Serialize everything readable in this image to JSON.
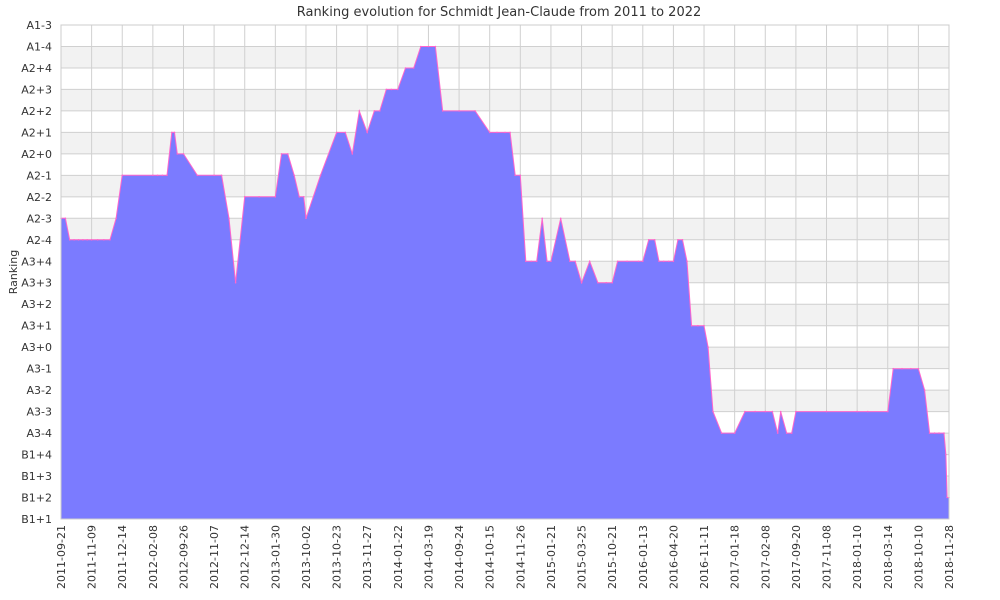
{
  "chart_data": {
    "type": "area",
    "title": "Ranking evolution for Schmidt Jean-Claude from 2011 to 2022",
    "xlabel": "",
    "ylabel": "Ranking",
    "grid": true,
    "y_categories": [
      "B1+1",
      "B1+2",
      "B1+3",
      "B1+4",
      "A3-4",
      "A3-3",
      "A3-2",
      "A3-1",
      "A3+0",
      "A3+1",
      "A3+2",
      "A3+3",
      "A3+4",
      "A2-4",
      "A2-3",
      "A2-2",
      "A2-1",
      "A2+0",
      "A2+1",
      "A2+2",
      "A2+3",
      "A2+4",
      "A1-4",
      "A1-3"
    ],
    "x_tick_labels": [
      "2011-09-21",
      "2011-11-09",
      "2011-12-14",
      "2012-02-08",
      "2012-09-26",
      "2012-11-07",
      "2012-12-14",
      "2013-01-30",
      "2013-10-02",
      "2013-10-23",
      "2013-11-27",
      "2014-01-22",
      "2014-03-19",
      "2014-09-24",
      "2014-10-15",
      "2014-11-26",
      "2015-01-21",
      "2015-03-25",
      "2015-10-21",
      "2016-01-13",
      "2016-04-20",
      "2016-11-11",
      "2017-01-18",
      "2017-02-08",
      "2017-09-20",
      "2017-11-08",
      "2018-01-10",
      "2018-03-14",
      "2018-10-10",
      "2018-11-28"
    ],
    "series": [
      {
        "values": [
          [
            "2011-09-21",
            "A2-3"
          ],
          [
            "2011-09-28",
            "A2-3"
          ],
          [
            "2011-10-05",
            "A2-4"
          ],
          [
            "2011-10-12",
            "A2-4"
          ],
          [
            "2011-10-19",
            "A2-4"
          ],
          [
            "2011-10-26",
            "A2-4"
          ],
          [
            "2011-11-02",
            "A2-4"
          ],
          [
            "2011-11-09",
            "A2-4"
          ],
          [
            "2011-11-16",
            "A2-4"
          ],
          [
            "2011-11-23",
            "A2-4"
          ],
          [
            "2011-11-30",
            "A2-4"
          ],
          [
            "2011-12-07",
            "A2-3"
          ],
          [
            "2011-12-14",
            "A2-1"
          ],
          [
            "2012-02-08",
            "A2-1"
          ],
          [
            "2012-03-15",
            "A2-1"
          ],
          [
            "2012-04-20",
            "A2-1"
          ],
          [
            "2012-05-25",
            "A2-1"
          ],
          [
            "2012-06-30",
            "A2+1"
          ],
          [
            "2012-07-20",
            "A2+1"
          ],
          [
            "2012-08-10",
            "A2+0"
          ],
          [
            "2012-09-26",
            "A2+0"
          ],
          [
            "2012-10-15",
            "A2-1"
          ],
          [
            "2012-11-07",
            "A2-1"
          ],
          [
            "2012-11-16",
            "A2-1"
          ],
          [
            "2012-11-25",
            "A2-3"
          ],
          [
            "2012-12-03",
            "A3+3"
          ],
          [
            "2012-12-14",
            "A2-2"
          ],
          [
            "2013-01-05",
            "A2-2"
          ],
          [
            "2013-01-30",
            "A2-2"
          ],
          [
            "2013-03-20",
            "A2+0"
          ],
          [
            "2013-05-10",
            "A2+0"
          ],
          [
            "2013-06-30",
            "A2-1"
          ],
          [
            "2013-08-10",
            "A2-2"
          ],
          [
            "2013-09-15",
            "A2-2"
          ],
          [
            "2013-10-02",
            "A2-3"
          ],
          [
            "2013-10-12",
            "A2-1"
          ],
          [
            "2013-10-23",
            "A2+1"
          ],
          [
            "2013-11-02",
            "A2+1"
          ],
          [
            "2013-11-10",
            "A2+0"
          ],
          [
            "2013-11-18",
            "A2+2"
          ],
          [
            "2013-11-27",
            "A2+1"
          ],
          [
            "2013-12-10",
            "A2+2"
          ],
          [
            "2013-12-20",
            "A2+2"
          ],
          [
            "2014-01-01",
            "A2+3"
          ],
          [
            "2014-01-10",
            "A2+3"
          ],
          [
            "2014-01-22",
            "A2+3"
          ],
          [
            "2014-02-05",
            "A2+4"
          ],
          [
            "2014-02-20",
            "A2+4"
          ],
          [
            "2014-03-05",
            "A1-4"
          ],
          [
            "2014-03-19",
            "A1-4"
          ],
          [
            "2014-05-01",
            "A1-4"
          ],
          [
            "2014-06-15",
            "A2+2"
          ],
          [
            "2014-09-24",
            "A2+2"
          ],
          [
            "2014-10-05",
            "A2+2"
          ],
          [
            "2014-10-15",
            "A2+1"
          ],
          [
            "2014-10-25",
            "A2+1"
          ],
          [
            "2014-11-05",
            "A2+1"
          ],
          [
            "2014-11-12",
            "A2+1"
          ],
          [
            "2014-11-19",
            "A2-1"
          ],
          [
            "2014-11-26",
            "A2-1"
          ],
          [
            "2014-12-06",
            "A3+4"
          ],
          [
            "2014-12-16",
            "A3+4"
          ],
          [
            "2014-12-26",
            "A3+4"
          ],
          [
            "2015-01-05",
            "A2-3"
          ],
          [
            "2015-01-14",
            "A3+4"
          ],
          [
            "2015-01-21",
            "A3+4"
          ],
          [
            "2015-02-10",
            "A2-3"
          ],
          [
            "2015-03-01",
            "A3+4"
          ],
          [
            "2015-03-12",
            "A3+4"
          ],
          [
            "2015-03-25",
            "A3+3"
          ],
          [
            "2015-05-20",
            "A3+4"
          ],
          [
            "2015-07-15",
            "A3+3"
          ],
          [
            "2015-09-10",
            "A3+3"
          ],
          [
            "2015-10-21",
            "A3+3"
          ],
          [
            "2015-11-05",
            "A3+4"
          ],
          [
            "2015-12-01",
            "A3+4"
          ],
          [
            "2016-01-01",
            "A3+4"
          ],
          [
            "2016-01-13",
            "A3+4"
          ],
          [
            "2016-02-01",
            "A2-4"
          ],
          [
            "2016-02-20",
            "A2-4"
          ],
          [
            "2016-03-05",
            "A3+4"
          ],
          [
            "2016-03-20",
            "A3+4"
          ],
          [
            "2016-04-05",
            "A3+4"
          ],
          [
            "2016-04-20",
            "A3+4"
          ],
          [
            "2016-05-20",
            "A2-4"
          ],
          [
            "2016-06-20",
            "A2-4"
          ],
          [
            "2016-07-20",
            "A3+4"
          ],
          [
            "2016-08-20",
            "A3+1"
          ],
          [
            "2016-10-01",
            "A3+1"
          ],
          [
            "2016-11-11",
            "A3+1"
          ],
          [
            "2016-11-20",
            "A3+0"
          ],
          [
            "2016-12-01",
            "A3-3"
          ],
          [
            "2016-12-20",
            "A3-4"
          ],
          [
            "2017-01-18",
            "A3-4"
          ],
          [
            "2017-01-25",
            "A3-3"
          ],
          [
            "2017-02-01",
            "A3-3"
          ],
          [
            "2017-02-08",
            "A3-3"
          ],
          [
            "2017-04-01",
            "A3-3"
          ],
          [
            "2017-05-10",
            "A3-4"
          ],
          [
            "2017-06-01",
            "A3-3"
          ],
          [
            "2017-07-15",
            "A3-4"
          ],
          [
            "2017-08-20",
            "A3-4"
          ],
          [
            "2017-09-20",
            "A3-3"
          ],
          [
            "2017-11-08",
            "A3-3"
          ],
          [
            "2018-01-10",
            "A3-3"
          ],
          [
            "2018-02-01",
            "A3-3"
          ],
          [
            "2018-03-14",
            "A3-3"
          ],
          [
            "2018-04-20",
            "A3-1"
          ],
          [
            "2018-06-20",
            "A3-1"
          ],
          [
            "2018-08-20",
            "A3-1"
          ],
          [
            "2018-10-10",
            "A3-1"
          ],
          [
            "2018-10-20",
            "A3-2"
          ],
          [
            "2018-10-28",
            "A3-4"
          ],
          [
            "2018-11-05",
            "A3-4"
          ],
          [
            "2018-11-12",
            "A3-4"
          ],
          [
            "2018-11-20",
            "A3-4"
          ],
          [
            "2018-11-23",
            "B1+4"
          ],
          [
            "2018-11-25",
            "B1+2"
          ],
          [
            "2018-11-28",
            "B1+2"
          ]
        ]
      }
    ],
    "colors": {
      "fill": "#7b7bff",
      "line": "#ff66cc",
      "grid": "#d0d0d0",
      "band": "#f2f2f2"
    }
  }
}
